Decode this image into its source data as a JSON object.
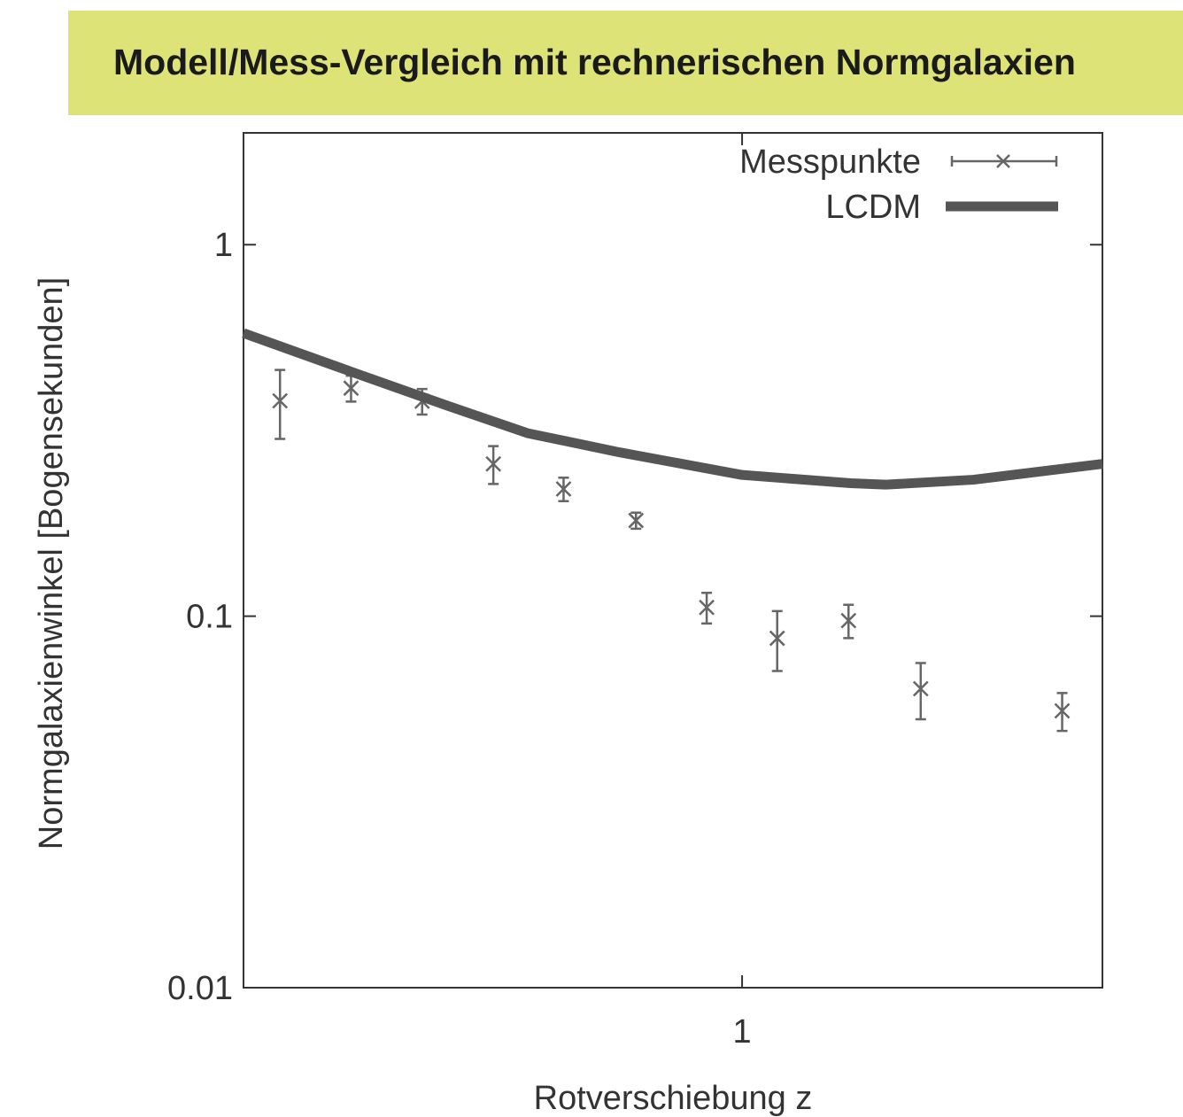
{
  "chart_data": {
    "type": "scatter",
    "title": "Modell/Mess-Vergleich mit rechnerischen Normgalaxien",
    "x_label": "Rotverschiebung z",
    "y_label": "Normgalaxienwinkel [Bogensekunden]",
    "xscale": "log",
    "yscale": "log",
    "xlim": [
      0.2,
      3.2
    ],
    "ylim": [
      0.01,
      2
    ],
    "xticks": [
      1
    ],
    "yticks": [
      0.01,
      0.1,
      1
    ],
    "legend": "upper right",
    "series": [
      {
        "name": "Messpunkte",
        "type": "errorbar",
        "color": "#666666",
        "x": [
          0.225,
          0.283,
          0.356,
          0.448,
          0.562,
          0.71,
          0.892,
          1.12,
          1.41,
          1.78,
          2.81
        ],
        "values": [
          0.38,
          0.411,
          0.379,
          0.257,
          0.22,
          0.181,
          0.1056,
          0.0872,
          0.0973,
          0.0638,
          0.0556
        ],
        "errors": [
          0.08,
          0.033,
          0.03,
          0.03,
          0.016,
          0.009,
          0.01,
          0.016,
          0.01,
          0.011,
          0.0065
        ]
      },
      {
        "name": "LCDM",
        "type": "line",
        "color": "#555555",
        "x": [
          0.2,
          0.286,
          0.381,
          0.5,
          0.674,
          1,
          1.42,
          1.59,
          2.11,
          3.2
        ],
        "values": [
          0.578,
          0.452,
          0.372,
          0.311,
          0.276,
          0.24,
          0.228,
          0.226,
          0.233,
          0.257
        ]
      }
    ]
  }
}
